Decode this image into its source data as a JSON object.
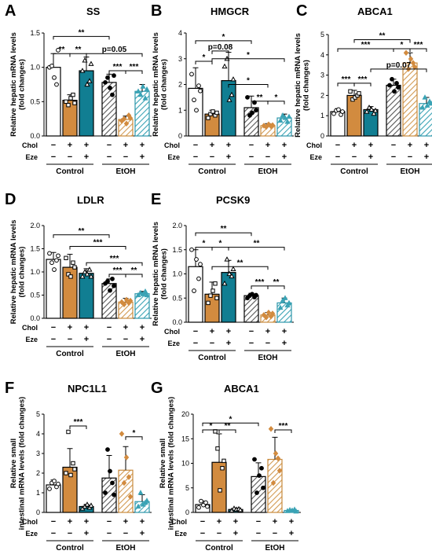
{
  "figure": {
    "row_labels": [
      "Chol",
      "Eze"
    ],
    "chol_signs": [
      "−",
      "+",
      "+",
      "−",
      "+",
      "+"
    ],
    "eze_signs": [
      "−",
      "−",
      "+",
      "−",
      "−",
      "+"
    ],
    "groups": [
      "Control",
      "EtOH"
    ]
  },
  "chart_data": [
    {
      "id": "A",
      "type": "bar",
      "panel_letter": "A",
      "title": "SS",
      "ylabel": "Relative hepatic mRNA levels (fold changes)",
      "ylim": [
        0,
        1.5
      ],
      "yticks": [
        0.0,
        0.5,
        1.0,
        1.5
      ],
      "values": [
        1.0,
        0.52,
        0.95,
        0.78,
        0.24,
        0.65
      ],
      "errors": [
        0.2,
        0.08,
        0.2,
        0.12,
        0.05,
        0.1
      ],
      "points": [
        [
          1.0,
          1.02,
          0.85,
          0.75,
          1.25
        ],
        [
          0.5,
          0.45,
          0.55,
          0.6,
          0.48
        ],
        [
          0.95,
          1.1,
          0.75,
          0.8,
          1.05
        ],
        [
          0.78,
          0.85,
          0.7,
          0.6,
          0.88
        ],
        [
          0.22,
          0.25,
          0.18,
          0.3,
          0.26
        ],
        [
          0.65,
          0.6,
          0.72,
          0.55,
          0.68
        ]
      ],
      "annotations": [
        {
          "a": 0,
          "b": 3,
          "y": 1.45,
          "label": "**"
        },
        {
          "a": 0,
          "b": 1,
          "y": 1.2,
          "label": "**"
        },
        {
          "a": 1,
          "b": 2,
          "y": 1.2,
          "label": "**"
        },
        {
          "a": 2,
          "b": 5,
          "y": 1.2,
          "label": "p=0.05"
        },
        {
          "a": 3,
          "b": 4,
          "y": 0.95,
          "label": "***"
        },
        {
          "a": 4,
          "b": 5,
          "y": 0.95,
          "label": "***"
        }
      ]
    },
    {
      "id": "B",
      "type": "bar",
      "panel_letter": "B",
      "title": "HMGCR",
      "ylabel": "Relative hepatic mRNA levels (fold changes)",
      "ylim": [
        0,
        4
      ],
      "yticks": [
        0,
        1,
        2,
        3,
        4
      ],
      "values": [
        1.85,
        0.85,
        2.15,
        1.1,
        0.4,
        0.7
      ],
      "errors": [
        0.8,
        0.15,
        1.1,
        0.45,
        0.08,
        0.15
      ],
      "points": [
        [
          2.4,
          1.4,
          1.0,
          1.95,
          1.75
        ],
        [
          0.7,
          0.85,
          0.95,
          0.8,
          0.9
        ],
        [
          2.7,
          3.0,
          1.4,
          1.6,
          2.2
        ],
        [
          1.5,
          0.8,
          0.9,
          1.3,
          1.0
        ],
        [
          0.4,
          0.35,
          0.45,
          0.38,
          0.42
        ],
        [
          0.6,
          0.8,
          0.7,
          0.55,
          0.75
        ]
      ],
      "annotations": [
        {
          "a": 0,
          "b": 3,
          "y": 3.7,
          "label": "*"
        },
        {
          "a": 1,
          "b": 2,
          "y": 3.3,
          "label": "p=0.08"
        },
        {
          "a": 1,
          "b": 5,
          "y": 3.0,
          "label": "*"
        },
        {
          "a": 0,
          "b": 1,
          "y": 2.9,
          "label": "*"
        },
        {
          "a": 2,
          "b": 4,
          "y": 2.0,
          "label": "*"
        },
        {
          "a": 3,
          "b": 4,
          "y": 1.35,
          "label": "**"
        },
        {
          "a": 4,
          "b": 5,
          "y": 1.35,
          "label": "*"
        }
      ]
    },
    {
      "id": "C",
      "type": "bar",
      "panel_letter": "C",
      "title": "ABCA1",
      "ylabel": "Relative hepatic mRNA levels (fold changes)",
      "ylim": [
        0,
        5
      ],
      "yticks": [
        0,
        1,
        2,
        3,
        4,
        5
      ],
      "values": [
        1.2,
        2.0,
        1.3,
        2.5,
        3.6,
        1.6
      ],
      "errors": [
        0.15,
        0.25,
        0.15,
        0.3,
        0.5,
        0.3
      ],
      "points": [
        [
          1.1,
          1.25,
          1.3,
          1.05,
          1.2
        ],
        [
          2.2,
          1.8,
          1.9,
          2.0,
          2.1
        ],
        [
          1.2,
          1.4,
          1.3,
          1.1,
          1.25
        ],
        [
          2.5,
          2.8,
          2.2,
          2.6,
          2.4
        ],
        [
          4.1,
          3.3,
          3.8,
          3.6,
          3.4
        ],
        [
          1.4,
          1.9,
          1.5,
          1.7,
          1.6
        ]
      ],
      "annotations": [
        {
          "a": 1,
          "b": 4,
          "y": 4.75,
          "label": "**"
        },
        {
          "a": 0,
          "b": 3,
          "y": 4.3,
          "label": "***"
        },
        {
          "a": 3,
          "b": 4,
          "y": 4.3,
          "label": "*"
        },
        {
          "a": 4,
          "b": 5,
          "y": 4.3,
          "label": "***"
        },
        {
          "a": 2,
          "b": 5,
          "y": 3.3,
          "label": "p=0.07"
        },
        {
          "a": 0,
          "b": 1,
          "y": 2.6,
          "label": "***"
        },
        {
          "a": 1,
          "b": 2,
          "y": 2.6,
          "label": "***"
        }
      ]
    },
    {
      "id": "D",
      "type": "bar",
      "panel_letter": "D",
      "title": "LDLR",
      "ylabel": "Relative hepatic mRNA levels (fold changes)",
      "ylim": [
        0,
        2.0
      ],
      "yticks": [
        0.0,
        0.5,
        1.0,
        1.5,
        2.0
      ],
      "values": [
        1.27,
        1.1,
        0.97,
        0.75,
        0.35,
        0.53
      ],
      "errors": [
        0.15,
        0.28,
        0.1,
        0.1,
        0.08,
        0.05
      ],
      "points": [
        [
          1.4,
          1.2,
          1.05,
          1.25,
          1.35
        ],
        [
          1.3,
          0.95,
          0.9,
          1.2,
          1.1
        ],
        [
          0.9,
          1.0,
          0.95,
          1.05,
          0.9
        ],
        [
          0.75,
          0.8,
          0.6,
          0.85,
          0.7
        ],
        [
          0.35,
          0.3,
          0.4,
          0.33,
          0.38
        ],
        [
          0.5,
          0.55,
          0.52,
          0.58,
          0.5
        ]
      ],
      "annotations": [
        {
          "a": 0,
          "b": 3,
          "y": 1.8,
          "label": "**"
        },
        {
          "a": 1,
          "b": 4,
          "y": 1.55,
          "label": "***"
        },
        {
          "a": 2,
          "b": 5,
          "y": 1.2,
          "label": "***"
        },
        {
          "a": 3,
          "b": 4,
          "y": 0.95,
          "label": "***"
        },
        {
          "a": 4,
          "b": 5,
          "y": 0.95,
          "label": "**"
        }
      ]
    },
    {
      "id": "E",
      "type": "bar",
      "panel_letter": "E",
      "title": "PCSK9",
      "ylabel": "Relative hepatic mRNA levels (fold changes)",
      "ylim": [
        0,
        2.0
      ],
      "yticks": [
        0.0,
        0.5,
        1.0,
        1.5,
        2.0
      ],
      "values": [
        1.15,
        0.58,
        1.03,
        0.55,
        0.15,
        0.4
      ],
      "errors": [
        0.35,
        0.25,
        0.25,
        0.05,
        0.05,
        0.1
      ],
      "points": [
        [
          1.5,
          0.65,
          1.3,
          0.9,
          1.2
        ],
        [
          0.4,
          0.55,
          0.65,
          0.8,
          0.5
        ],
        [
          0.8,
          1.3,
          1.0,
          0.95,
          1.1
        ],
        [
          0.5,
          0.55,
          0.58,
          0.52,
          0.56
        ],
        [
          0.15,
          0.1,
          0.2,
          0.12,
          0.18
        ],
        [
          0.3,
          0.45,
          0.5,
          0.35,
          0.4
        ]
      ],
      "annotations": [
        {
          "a": 0,
          "b": 3,
          "y": 1.85,
          "label": "**"
        },
        {
          "a": 0,
          "b": 1,
          "y": 1.55,
          "label": "*"
        },
        {
          "a": 1,
          "b": 2,
          "y": 1.55,
          "label": "*"
        },
        {
          "a": 2,
          "b": 5,
          "y": 1.55,
          "label": "**"
        },
        {
          "a": 1,
          "b": 4,
          "y": 1.15,
          "label": "**"
        },
        {
          "a": 3,
          "b": 4,
          "y": 0.75,
          "label": "***"
        },
        {
          "a": 4,
          "b": 5,
          "y": 0.75,
          "label": "**"
        }
      ]
    },
    {
      "id": "F",
      "type": "bar",
      "panel_letter": "F",
      "title": "NPC1L1",
      "ylabel": "Relative small intestinal mRNA levels (fold changes)",
      "ylim": [
        0,
        5
      ],
      "yticks": [
        0,
        1,
        2,
        3,
        4,
        5
      ],
      "values": [
        1.4,
        2.3,
        0.3,
        1.75,
        2.15,
        0.55
      ],
      "errors": [
        0.25,
        0.95,
        0.1,
        1.15,
        1.2,
        0.35
      ],
      "points": [
        [
          1.2,
          1.5,
          1.6,
          1.3,
          1.45
        ],
        [
          2.0,
          4.1,
          1.9,
          2.5,
          2.2
        ],
        [
          0.2,
          0.3,
          0.4,
          0.25,
          0.35
        ],
        [
          1.0,
          3.2,
          2.1,
          1.5,
          0.9
        ],
        [
          4.0,
          1.5,
          2.8,
          1.8,
          0.8
        ],
        [
          0.3,
          1.0,
          0.4,
          0.5,
          0.6
        ]
      ],
      "annotations": [
        {
          "a": 1,
          "b": 2,
          "y": 4.4,
          "label": "***"
        },
        {
          "a": 4,
          "b": 5,
          "y": 3.85,
          "label": "*"
        }
      ]
    },
    {
      "id": "G",
      "type": "bar",
      "panel_letter": "G",
      "title": "ABCA1",
      "ylabel": "Relative small intestinal mRNA levels (fold changes)",
      "ylim": [
        0,
        20
      ],
      "yticks": [
        0,
        5,
        10,
        15,
        20
      ],
      "values": [
        1.6,
        10.2,
        0.6,
        7.3,
        10.8,
        0.4
      ],
      "errors": [
        0.7,
        5.8,
        0.3,
        2.8,
        4.5,
        0.2
      ],
      "points": [
        [
          1.0,
          2.3,
          1.5,
          2.0,
          1.2
        ],
        [
          16.5,
          13.0,
          4.5,
          9.0,
          10.5
        ],
        [
          0.4,
          0.8,
          0.6,
          0.7,
          0.5
        ],
        [
          10.8,
          4.0,
          7.5,
          9.0,
          5.0
        ],
        [
          17.0,
          6.0,
          12.0,
          11.0,
          8.5
        ],
        [
          0.3,
          0.5,
          0.4,
          0.6,
          0.2
        ]
      ],
      "annotations": [
        {
          "a": 0,
          "b": 3,
          "y": 18.2,
          "label": "*"
        },
        {
          "a": 0,
          "b": 1,
          "y": 16.8,
          "label": "*"
        },
        {
          "a": 1,
          "b": 2,
          "y": 16.8,
          "label": "**"
        },
        {
          "a": 4,
          "b": 5,
          "y": 16.8,
          "label": "***"
        }
      ]
    }
  ]
}
